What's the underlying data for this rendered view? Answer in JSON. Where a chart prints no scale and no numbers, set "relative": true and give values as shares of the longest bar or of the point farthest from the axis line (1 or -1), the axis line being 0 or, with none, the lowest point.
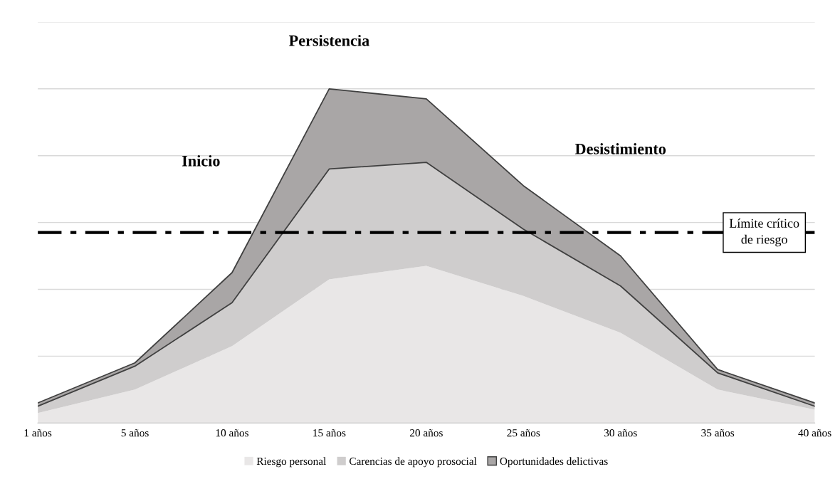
{
  "chart_data": {
    "type": "area",
    "stacked": true,
    "relative": true,
    "categories": [
      "1 años",
      "5 años",
      "10 años",
      "15 años",
      "20 años",
      "25 años",
      "30 años",
      "35 años",
      "40 años"
    ],
    "series": [
      {
        "name": "Riesgo personal",
        "color": "#e9e7e7",
        "values": [
          0.03,
          0.1,
          0.23,
          0.43,
          0.47,
          0.38,
          0.27,
          0.1,
          0.04
        ]
      },
      {
        "name": "Carencias de apoyo prosocial",
        "color": "#cfcdcd",
        "values": [
          0.02,
          0.07,
          0.13,
          0.33,
          0.31,
          0.2,
          0.14,
          0.05,
          0.01
        ]
      },
      {
        "name": "Oportunidades delictivas",
        "color": "#a9a6a6",
        "values": [
          0.01,
          0.01,
          0.09,
          0.24,
          0.19,
          0.13,
          0.09,
          0.01,
          0.01
        ]
      }
    ],
    "annotations": [
      "Inicio",
      "Persistencia",
      "Desistimiento"
    ],
    "ref_lines": [
      {
        "axis": "y",
        "value": 0.57,
        "label": "Límite crítico de riesgo",
        "color": "#000000",
        "line_style": "dashdot"
      }
    ],
    "grid": "y",
    "legend": "bottom"
  }
}
